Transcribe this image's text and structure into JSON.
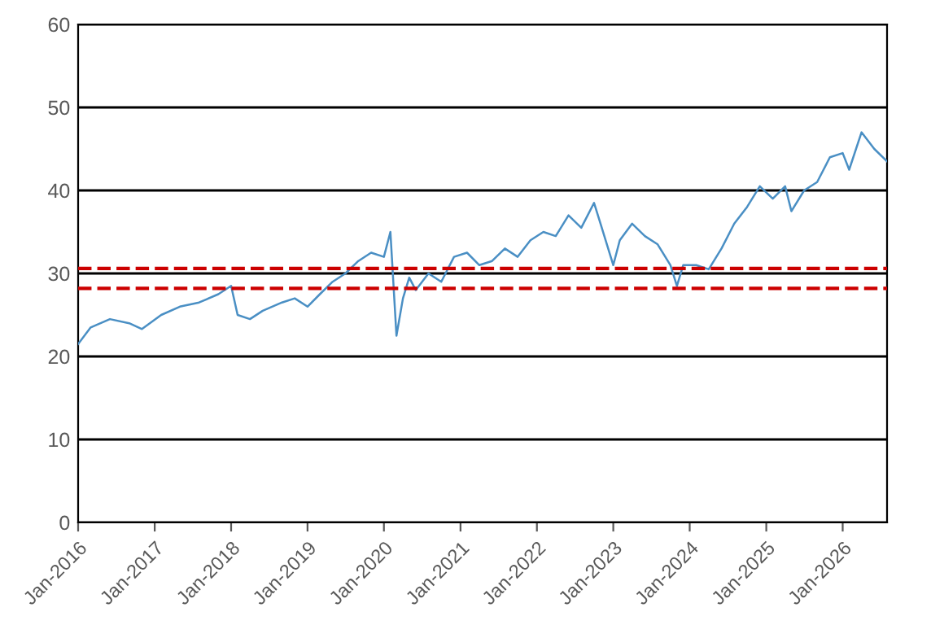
{
  "chart_data": {
    "type": "line",
    "x": [
      "2016-01",
      "2016-03",
      "2016-06",
      "2016-09",
      "2016-11",
      "2017-02",
      "2017-05",
      "2017-08",
      "2017-11",
      "2018-01",
      "2018-02",
      "2018-04",
      "2018-06",
      "2018-09",
      "2018-11",
      "2019-01",
      "2019-03",
      "2019-05",
      "2019-07",
      "2019-09",
      "2019-11",
      "2020-01",
      "2020-02",
      "2020-03",
      "2020-04",
      "2020-05",
      "2020-06",
      "2020-08",
      "2020-10",
      "2020-12",
      "2021-02",
      "2021-04",
      "2021-06",
      "2021-08",
      "2021-10",
      "2021-12",
      "2022-02",
      "2022-04",
      "2022-06",
      "2022-08",
      "2022-10",
      "2022-11",
      "2023-01",
      "2023-02",
      "2023-04",
      "2023-06",
      "2023-08",
      "2023-10",
      "2023-11",
      "2023-12",
      "2024-02",
      "2024-04",
      "2024-06",
      "2024-08",
      "2024-10",
      "2024-12",
      "2025-02",
      "2025-04",
      "2025-05",
      "2025-07",
      "2025-09",
      "2025-11",
      "2026-01",
      "2026-02",
      "2026-04",
      "2026-06",
      "2026-08"
    ],
    "series": [
      {
        "color": "#4a8fc4",
        "values": [
          21.5,
          23.5,
          24.5,
          24,
          23.3,
          25,
          26,
          26.5,
          27.5,
          28.5,
          25,
          24.5,
          25.5,
          26.5,
          27,
          26,
          27.5,
          29,
          30,
          31.5,
          32.5,
          32,
          35,
          22.5,
          27,
          29.5,
          28,
          30,
          29,
          32,
          32.5,
          31,
          31.5,
          33,
          32,
          34,
          35,
          34.5,
          37,
          35.5,
          38.5,
          36,
          31,
          34,
          36,
          34.5,
          33.5,
          31,
          28.5,
          31,
          31,
          30.5,
          33,
          36,
          38,
          40.5,
          39,
          40.5,
          37.5,
          40,
          41,
          44,
          44.5,
          42.5,
          47,
          45,
          43.5
        ]
      }
    ],
    "xlim": [
      "2016-01",
      "2026-08"
    ],
    "xticks": [
      {
        "value": "2016-01",
        "label": "Jan-2016"
      },
      {
        "value": "2017-01",
        "label": "Jan-2017"
      },
      {
        "value": "2018-01",
        "label": "Jan-2018"
      },
      {
        "value": "2019-01",
        "label": "Jan-2019"
      },
      {
        "value": "2020-01",
        "label": "Jan-2020"
      },
      {
        "value": "2021-01",
        "label": "Jan-2021"
      },
      {
        "value": "2022-01",
        "label": "Jan-2022"
      },
      {
        "value": "2023-01",
        "label": "Jan-2023"
      },
      {
        "value": "2024-01",
        "label": "Jan-2024"
      },
      {
        "value": "2025-01",
        "label": "Jan-2025"
      },
      {
        "value": "2026-01",
        "label": "Jan-2026"
      }
    ],
    "ylim": [
      0,
      60
    ],
    "yticks": [
      0,
      10,
      20,
      30,
      40,
      50,
      60
    ],
    "ref_lines": [
      {
        "axis": "y",
        "value": 30.6,
        "color": "#cc0000",
        "line_style": "dashed"
      },
      {
        "axis": "y",
        "value": 28.2,
        "color": "#cc0000",
        "line_style": "dashed"
      }
    ],
    "grid": "y",
    "legend": false,
    "marker": "none",
    "line_style": "solid"
  }
}
